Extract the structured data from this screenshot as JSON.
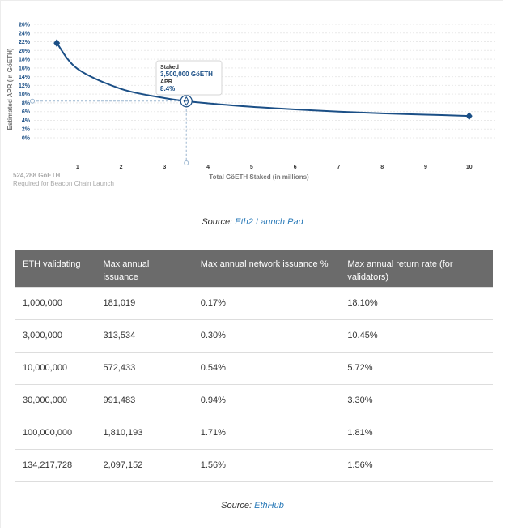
{
  "chart_data": {
    "type": "line",
    "ylabel": "Estimated APR (in GöETH)",
    "xlabel": "Total GöETH Staked  (in millions)",
    "x_ticks": [
      "1",
      "2",
      "3",
      "4",
      "5",
      "6",
      "7",
      "8",
      "9",
      "10"
    ],
    "y_ticks": [
      "0%",
      "2%",
      "4%",
      "6%",
      "8%",
      "10%",
      "12%",
      "14%",
      "16%",
      "18%",
      "20%",
      "22%",
      "24%",
      "26%"
    ],
    "xlim": [
      0,
      10.6
    ],
    "ylim": [
      0,
      26
    ],
    "x": [
      0.524288,
      1,
      2,
      3,
      3.5,
      4,
      5,
      6,
      7,
      8,
      9,
      10
    ],
    "y": [
      21.7,
      15.8,
      11.2,
      9.1,
      8.4,
      7.9,
      7.1,
      6.5,
      6.0,
      5.6,
      5.3,
      5.0
    ],
    "highlight": {
      "x": 3.5,
      "y": 8.4
    },
    "note": {
      "value": "524,288 GöETH",
      "text": "Required for Beacon Chain Launch"
    },
    "tooltip": {
      "staked_label": "Staked",
      "staked_value": "3,500,000 GöETH",
      "apr_label": "APR",
      "apr_value": "8.4%"
    },
    "color": "#1b4f86",
    "grid": true
  },
  "source1": {
    "prefix": "Source: ",
    "link": "Eth2 Launch Pad"
  },
  "table": {
    "headers": [
      "ETH validating",
      "Max annual issuance",
      "Max annual network issuance %",
      "Max annual return rate (for validators)"
    ],
    "rows": [
      [
        "1,000,000",
        "181,019",
        "0.17%",
        "18.10%"
      ],
      [
        "3,000,000",
        "313,534",
        "0.30%",
        "10.45%"
      ],
      [
        "10,000,000",
        "572,433",
        "0.54%",
        "5.72%"
      ],
      [
        "30,000,000",
        "991,483",
        "0.94%",
        "3.30%"
      ],
      [
        "100,000,000",
        "1,810,193",
        "1.71%",
        "1.81%"
      ],
      [
        "134,217,728",
        "2,097,152",
        "1.56%",
        "1.56%"
      ]
    ]
  },
  "source2": {
    "prefix": "Source: ",
    "link": "EthHub"
  }
}
